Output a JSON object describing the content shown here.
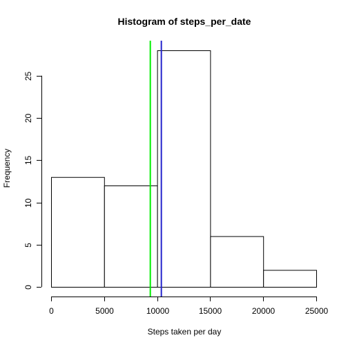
{
  "chart_data": {
    "type": "bar",
    "title": "Histogram of steps_per_date",
    "xlabel": "Steps taken per day",
    "ylabel": "Frequency",
    "bins": [
      {
        "from": 0,
        "to": 5000,
        "count": 13
      },
      {
        "from": 5000,
        "to": 10000,
        "count": 12
      },
      {
        "from": 10000,
        "to": 15000,
        "count": 28
      },
      {
        "from": 15000,
        "to": 20000,
        "count": 6
      },
      {
        "from": 20000,
        "to": 25000,
        "count": 2
      }
    ],
    "xlim": [
      0,
      25000
    ],
    "ylim": [
      0,
      28
    ],
    "x_ticks": [
      0,
      5000,
      10000,
      15000,
      20000,
      25000
    ],
    "y_ticks": [
      0,
      5,
      10,
      15,
      20,
      25
    ],
    "vlines": [
      {
        "x": 9354,
        "color": "#00ee00"
      },
      {
        "x": 10395,
        "color": "#2222cc"
      }
    ],
    "bar_fill": "#ffffff",
    "bar_stroke": "#000000"
  }
}
